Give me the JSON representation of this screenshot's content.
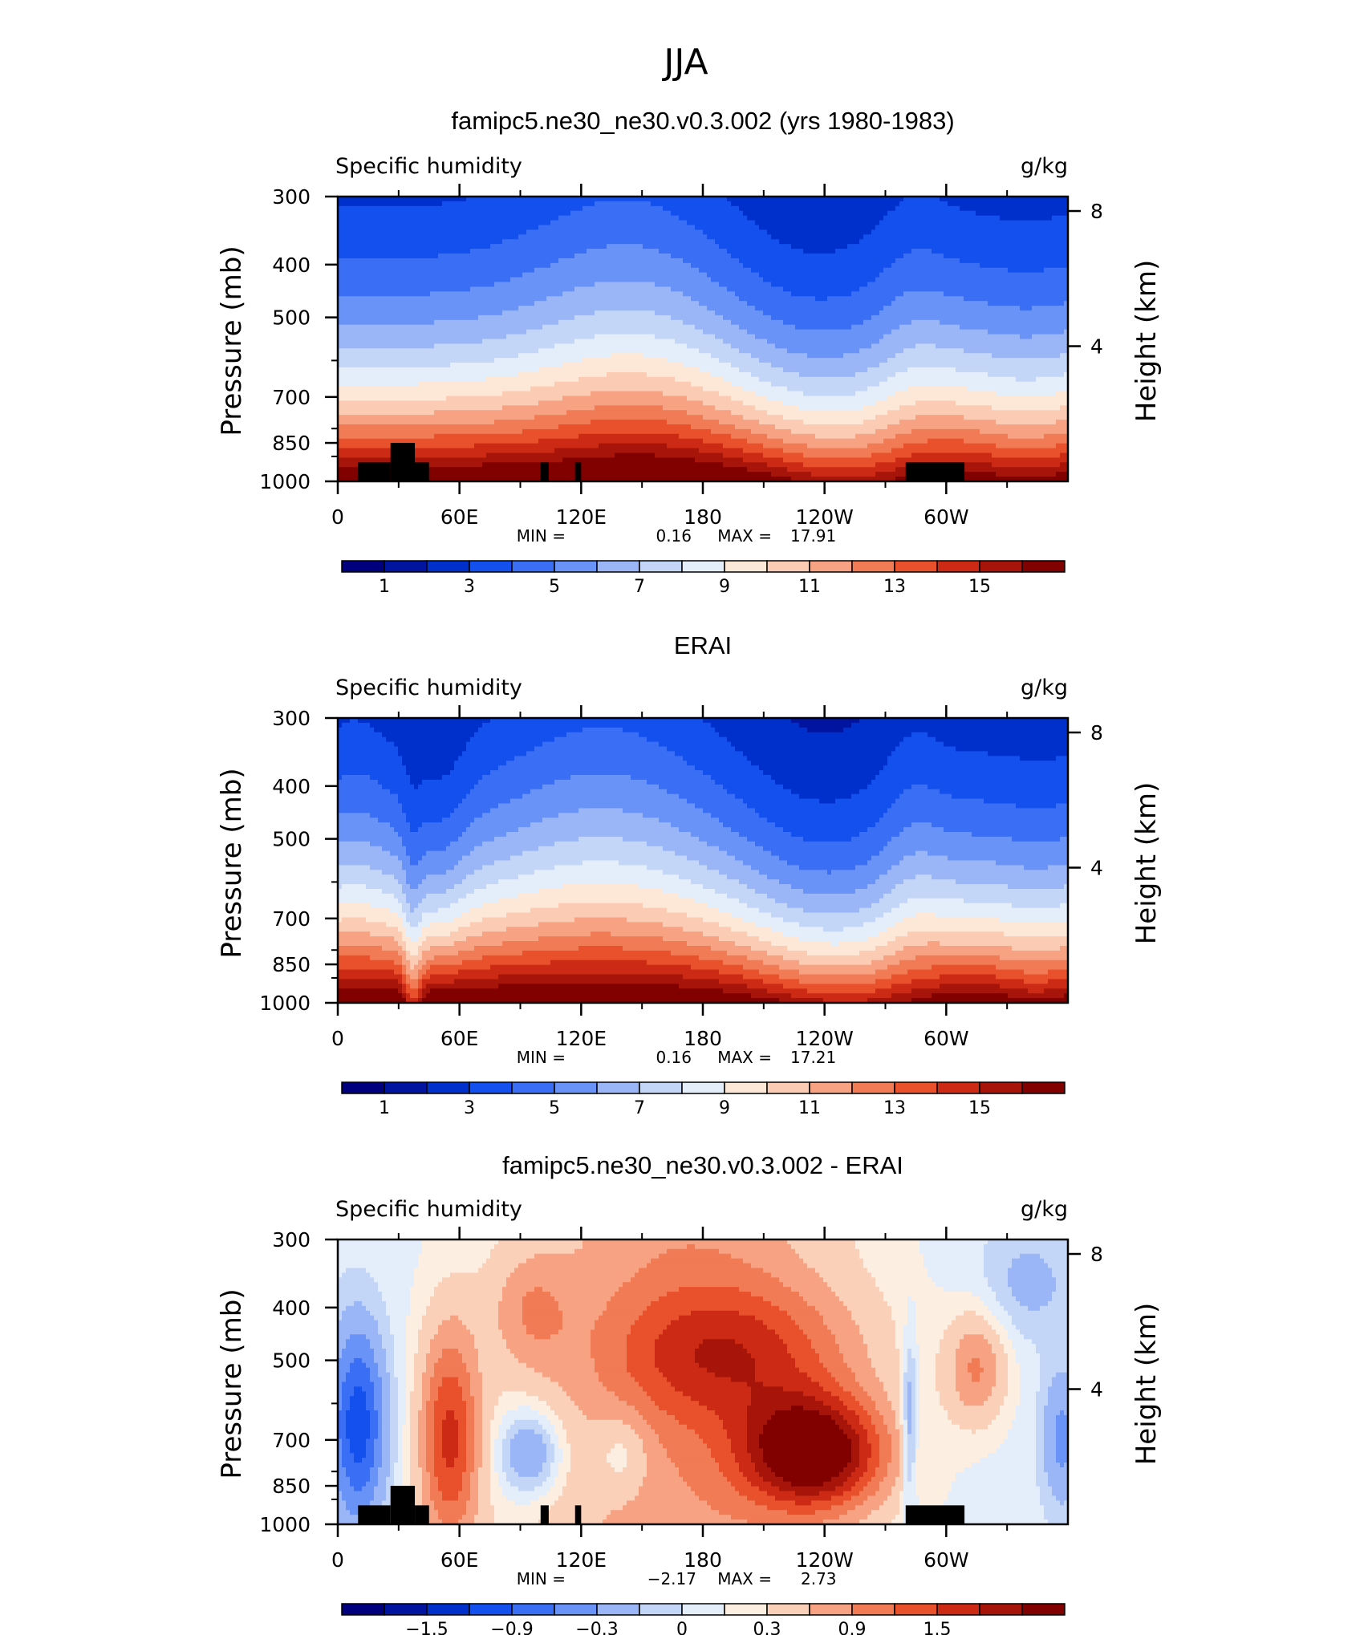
{
  "figure": {
    "title": "JJA"
  },
  "colors": {
    "full": [
      "#00007f",
      "#0014a0",
      "#0030cc",
      "#1450ee",
      "#3a6ef5",
      "#6a93f7",
      "#9ab6f7",
      "#c4d6f7",
      "#e4eefb",
      "#fde8d8",
      "#fbcbb3",
      "#f7a283",
      "#f17b55",
      "#e8512c",
      "#cc2a14",
      "#a7150a",
      "#810000"
    ],
    "diff": [
      "#00007f",
      "#0014a0",
      "#0030cc",
      "#1450ee",
      "#3a6ef5",
      "#6a93f7",
      "#9ab6f7",
      "#c4d6f7",
      "#e4eefb",
      "#fdeee2",
      "#fbd0b8",
      "#f7a283",
      "#f17b55",
      "#e8512c",
      "#cc2a14",
      "#a7150a",
      "#810000"
    ]
  },
  "chart_data": [
    {
      "type": "heatmap",
      "title": "famipc5.ne30_ne30.v0.3.002 (yrs 1980-1983)",
      "left_label": "Specific humidity",
      "right_label": "g/kg",
      "ylabel": "Pressure (mb)",
      "y2label": "Height (km)",
      "x_tick_labels": [
        "0",
        "60E",
        "120E",
        "180",
        "120W",
        "60W"
      ],
      "y_tick_labels": [
        "300",
        "400",
        "500",
        "700",
        "850",
        "1000"
      ],
      "y2_tick_labels": [
        "8",
        "4"
      ],
      "stats": {
        "min_label": "MIN =",
        "min": "0.16",
        "max_label": "MAX =",
        "max": "17.91"
      },
      "colorbar_labels": [
        "1",
        "3",
        "5",
        "7",
        "9",
        "11",
        "13",
        "15"
      ],
      "levels": [
        0,
        1,
        2,
        3,
        4,
        5,
        6,
        7,
        8,
        9,
        10,
        11,
        12,
        13,
        14,
        15
      ],
      "vmin": 0,
      "vmax": 17.91,
      "ylim": [
        1000,
        300
      ],
      "xlim": [
        0,
        360
      ]
    },
    {
      "type": "heatmap",
      "title": "ERAI",
      "left_label": "Specific humidity",
      "right_label": "g/kg",
      "ylabel": "Pressure (mb)",
      "y2label": "Height (km)",
      "x_tick_labels": [
        "0",
        "60E",
        "120E",
        "180",
        "120W",
        "60W"
      ],
      "y_tick_labels": [
        "300",
        "400",
        "500",
        "700",
        "850",
        "1000"
      ],
      "y2_tick_labels": [
        "8",
        "4"
      ],
      "stats": {
        "min_label": "MIN =",
        "min": "0.16",
        "max_label": "MAX =",
        "max": "17.21"
      },
      "colorbar_labels": [
        "1",
        "3",
        "5",
        "7",
        "9",
        "11",
        "13",
        "15"
      ],
      "levels": [
        0,
        1,
        2,
        3,
        4,
        5,
        6,
        7,
        8,
        9,
        10,
        11,
        12,
        13,
        14,
        15
      ],
      "vmin": 0,
      "vmax": 17.21,
      "ylim": [
        1000,
        300
      ],
      "xlim": [
        0,
        360
      ]
    },
    {
      "type": "heatmap",
      "title": "famipc5.ne30_ne30.v0.3.002 - ERAI",
      "left_label": "Specific humidity",
      "right_label": "g/kg",
      "ylabel": "Pressure (mb)",
      "y2label": "Height (km)",
      "x_tick_labels": [
        "0",
        "60E",
        "120E",
        "180",
        "120W",
        "60W"
      ],
      "y_tick_labels": [
        "300",
        "400",
        "500",
        "700",
        "850",
        "1000"
      ],
      "y2_tick_labels": [
        "8",
        "4"
      ],
      "stats": {
        "min_label": "MIN =",
        "min": "−2.17",
        "max_label": "MAX =",
        "max": "2.73"
      },
      "colorbar_labels": [
        "−1.5",
        "−0.9",
        "−0.3",
        "0",
        "0.3",
        "0.9",
        "1.5"
      ],
      "levels": [
        -2.1,
        -1.8,
        -1.5,
        -1.2,
        -0.9,
        -0.6,
        -0.3,
        -0.1,
        0.1,
        0.3,
        0.6,
        0.9,
        1.2,
        1.5,
        1.8,
        2.1
      ],
      "vmin": -2.17,
      "vmax": 2.73,
      "ylim": [
        1000,
        300
      ],
      "xlim": [
        0,
        360
      ]
    }
  ]
}
